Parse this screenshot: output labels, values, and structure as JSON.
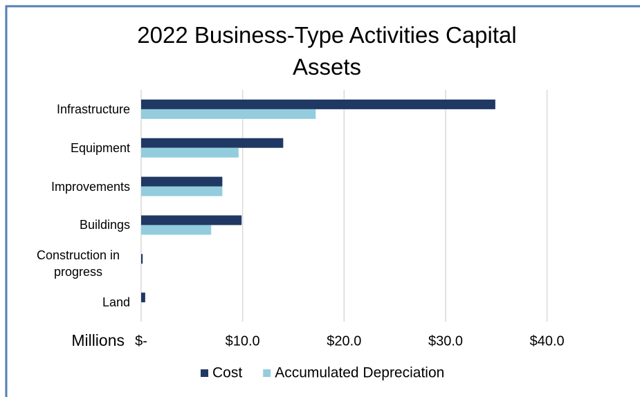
{
  "chart_data": {
    "type": "bar",
    "orientation": "horizontal",
    "title": "2022 Business-Type Activities Capital Assets",
    "x_label": "Millions",
    "categories": [
      "Infrastructure",
      "Equipment",
      "Improvements",
      "Buildings",
      "Construction in progress",
      "Land"
    ],
    "series": [
      {
        "name": "Cost",
        "color": "#203864",
        "values": [
          34.9,
          14.0,
          8.0,
          9.9,
          0.15,
          0.4
        ]
      },
      {
        "name": "Accumulated Depreciation",
        "color": "#93cddd",
        "values": [
          17.2,
          9.6,
          8.0,
          6.9,
          0,
          0
        ]
      }
    ],
    "xlim": [
      0,
      45
    ],
    "xticks": [
      {
        "value": 0,
        "label": "$-"
      },
      {
        "value": 10,
        "label": "$10.0"
      },
      {
        "value": 20,
        "label": "$20.0"
      },
      {
        "value": 30,
        "label": "$30.0"
      },
      {
        "value": 40,
        "label": "$40.0"
      }
    ],
    "grid": true,
    "legend": "bottom"
  }
}
